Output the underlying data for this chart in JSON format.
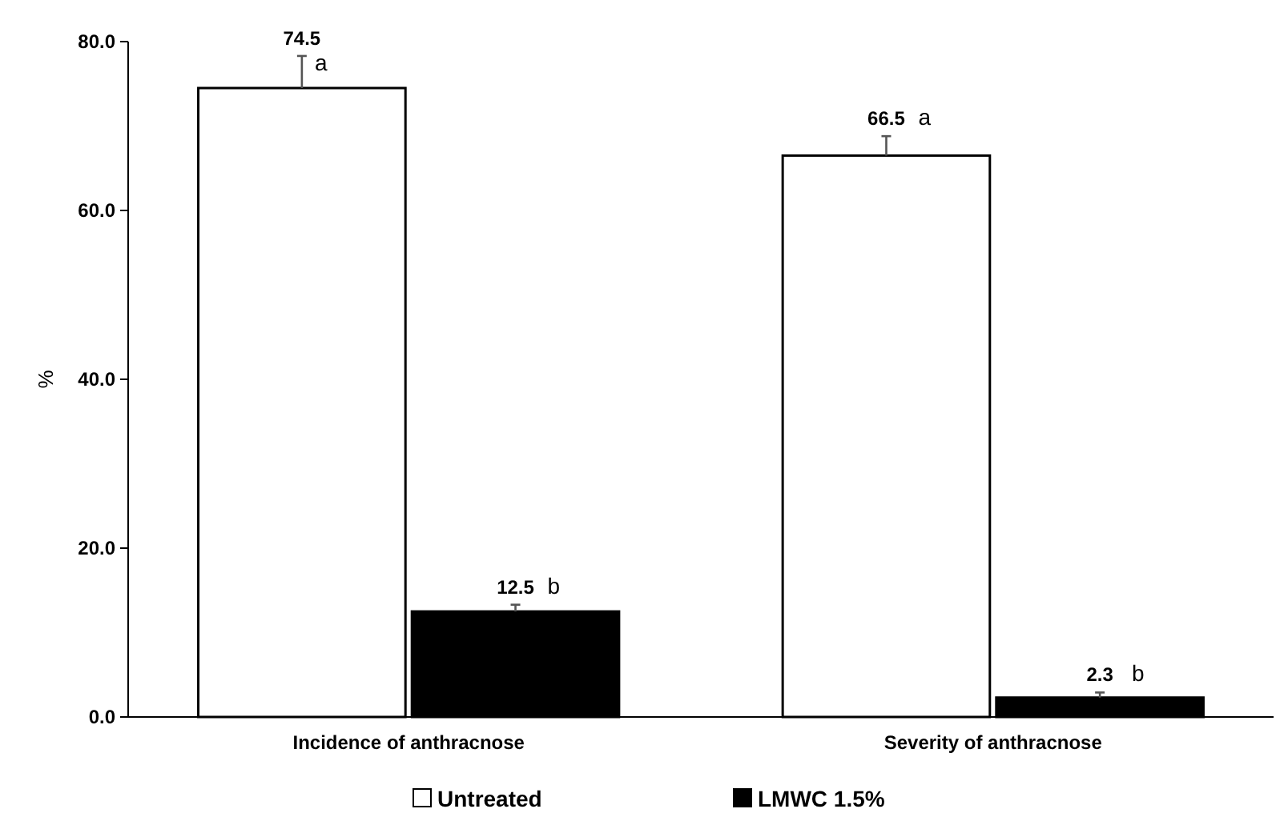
{
  "chart_data": {
    "type": "bar",
    "ylabel": "%",
    "categories": [
      "Incidence of anthracnose",
      "Severity of anthracnose"
    ],
    "series": [
      {
        "name": "Untreated",
        "color": "#ffffff",
        "values": [
          74.5,
          66.5
        ],
        "errors": [
          3.8,
          2.3
        ]
      },
      {
        "name": "LMWC 1.5%",
        "color": "#000000",
        "values": [
          12.5,
          2.3
        ],
        "errors": [
          0.8,
          0.6
        ]
      }
    ],
    "ylim": [
      0,
      80
    ],
    "yticks": [
      {
        "value": 0,
        "label": "0.0"
      },
      {
        "value": 20,
        "label": "20.0"
      },
      {
        "value": 40,
        "label": "40.0"
      },
      {
        "value": 60,
        "label": "60.0"
      },
      {
        "value": 80,
        "label": "80.0"
      }
    ],
    "data_labels": true,
    "legend": "bottom",
    "grid": false,
    "annotations": [
      "a",
      "b",
      "a",
      "b"
    ]
  }
}
